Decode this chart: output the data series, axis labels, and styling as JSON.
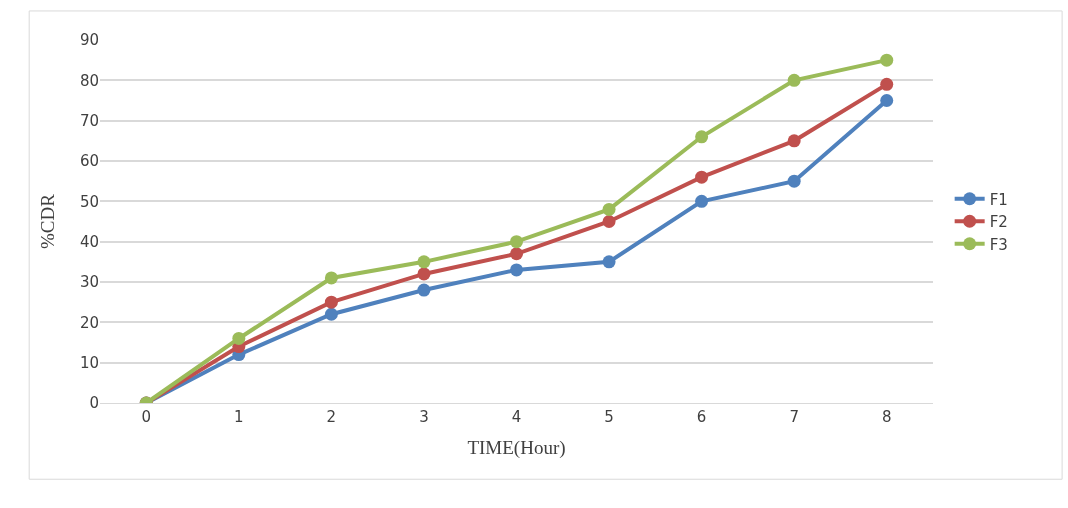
{
  "chart_data": {
    "type": "line",
    "xlabel": "TIME(Hour)",
    "ylabel": "%CDR",
    "categories": [
      "0",
      "1",
      "2",
      "3",
      "4",
      "5",
      "6",
      "7",
      "8"
    ],
    "series": [
      {
        "name": "F1",
        "color": "#4f81bd",
        "values": [
          0,
          12,
          22,
          28,
          33,
          35,
          50,
          55,
          75
        ]
      },
      {
        "name": "F2",
        "color": "#c0504d",
        "values": [
          0,
          14,
          25,
          32,
          37,
          45,
          56,
          65,
          79
        ]
      },
      {
        "name": "F3",
        "color": "#9bbb59",
        "values": [
          0,
          16,
          31,
          35,
          40,
          48,
          66,
          80,
          85
        ]
      }
    ],
    "ylim": [
      0,
      90
    ],
    "yticks": [
      0,
      10,
      20,
      30,
      40,
      50,
      60,
      70,
      80,
      90
    ],
    "grid": "y",
    "legend": "right",
    "marker": "circle",
    "line_style": "solid"
  }
}
